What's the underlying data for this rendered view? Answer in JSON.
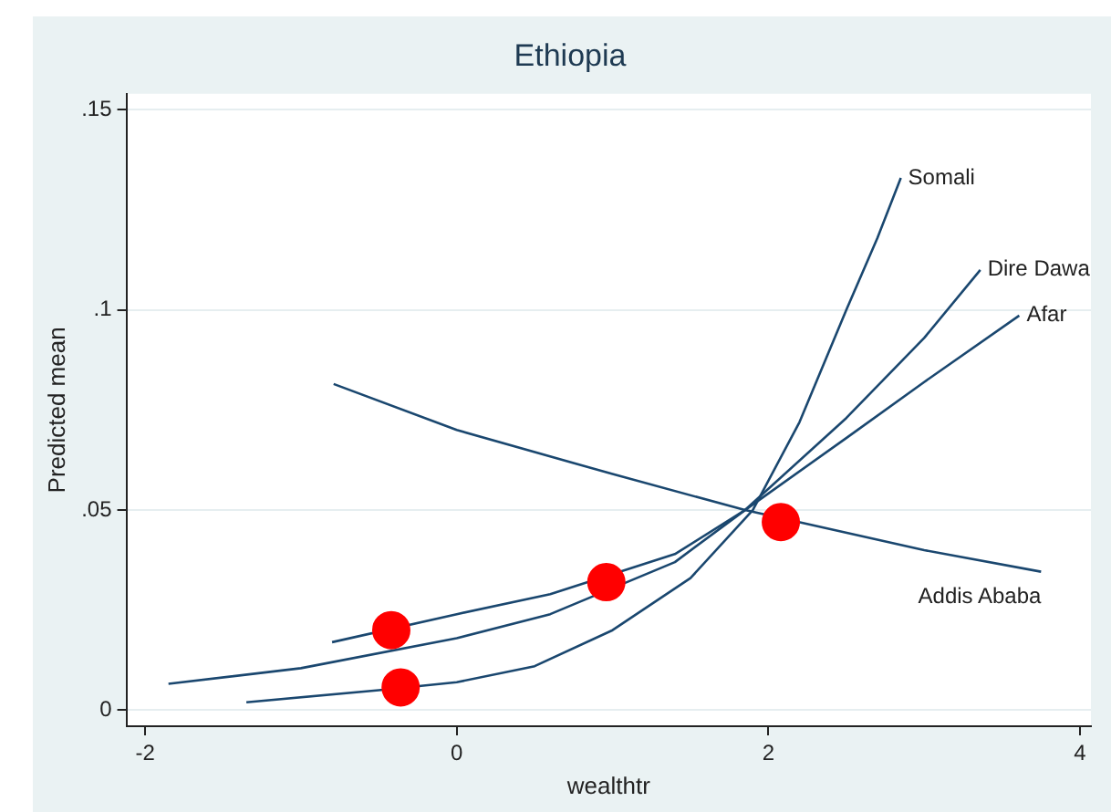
{
  "chart_data": {
    "type": "line",
    "title": "Ethiopia",
    "xlabel": "wealthtr",
    "ylabel": "Predicted mean",
    "xlim": [
      -2.12,
      4.07
    ],
    "ylim": [
      -0.004,
      0.154
    ],
    "xticks": [
      -2,
      0,
      2,
      4
    ],
    "yticks": [
      0,
      {
        "value": 0.05,
        "label": ".05"
      },
      {
        "value": 0.1,
        "label": ".1"
      },
      {
        "value": 0.15,
        "label": ".15"
      }
    ],
    "grid": "y",
    "legend": false,
    "marker": "none",
    "line_style": "solid",
    "series": [
      {
        "name": "Somali",
        "color": "#1a476f",
        "x": [
          -1.35,
          -0.5,
          0,
          0.5,
          1,
          1.5,
          1.9,
          2.2,
          2.5,
          2.7,
          2.85
        ],
        "values": [
          0.002,
          0.005,
          0.007,
          0.011,
          0.02,
          0.033,
          0.05,
          0.072,
          0.1,
          0.118,
          0.133
        ]
      },
      {
        "name": "Dire Dawa",
        "color": "#1a476f",
        "x": [
          -0.8,
          0,
          0.6,
          1.4,
          1.85,
          2.5,
          3,
          3.36
        ],
        "values": [
          0.017,
          0.024,
          0.029,
          0.039,
          0.05,
          0.073,
          0.093,
          0.11
        ]
      },
      {
        "name": "Afar",
        "color": "#1a476f",
        "x": [
          -1.85,
          -1,
          0,
          0.6,
          1.4,
          1.85,
          2.5,
          3,
          3.61
        ],
        "values": [
          0.0066,
          0.0105,
          0.018,
          0.024,
          0.037,
          0.05,
          0.068,
          0.082,
          0.0986
        ]
      },
      {
        "name": "Addis Ababa",
        "color": "#1a476f",
        "x": [
          -0.79,
          0,
          1,
          1.85,
          3,
          3.75
        ],
        "values": [
          0.0815,
          0.07,
          0.059,
          0.05,
          0.04,
          0.0346
        ]
      },
      {
        "type": "scatter",
        "color": "#ff0000",
        "marker": "circle",
        "x": [
          -0.42,
          -0.36,
          0.96,
          2.08
        ],
        "values": [
          0.02,
          0.0057,
          0.032,
          0.047
        ]
      }
    ]
  }
}
